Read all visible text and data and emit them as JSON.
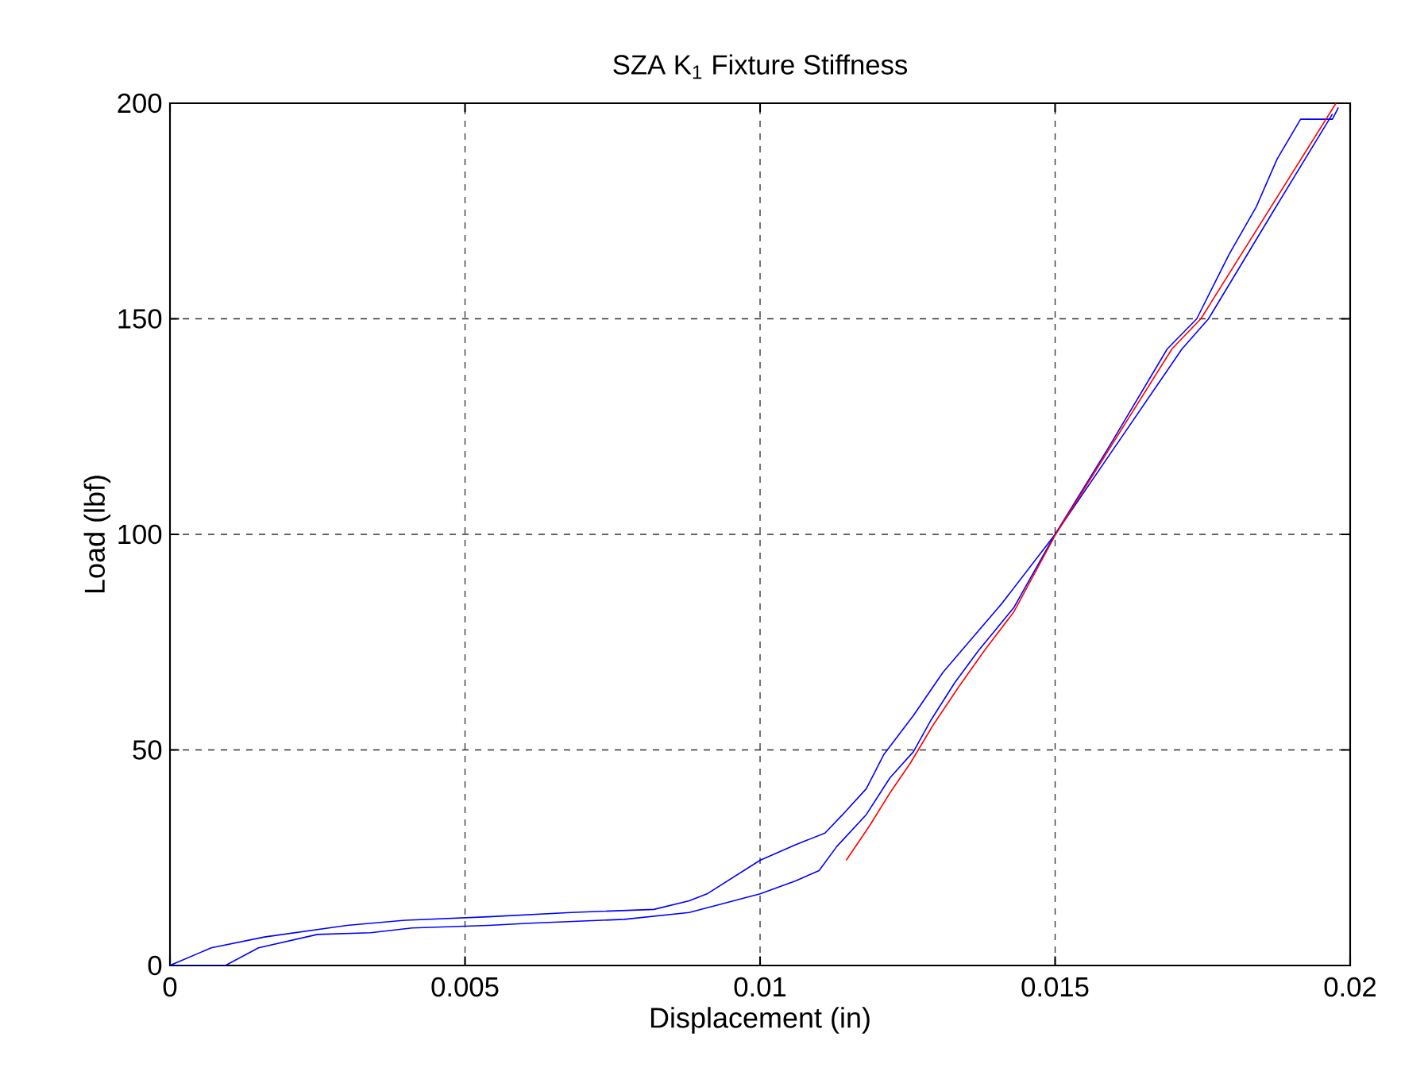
{
  "chart_data": {
    "type": "line",
    "title": "SZA K$_{1}$ Fixture Stiffness",
    "xlabel": "Displacement (in)",
    "ylabel": "Load (lbf)",
    "xlim": [
      0,
      0.02
    ],
    "ylim": [
      0,
      200
    ],
    "xticks": [
      0,
      0.005,
      0.01,
      0.015,
      0.02
    ],
    "yticks": [
      0,
      50,
      100,
      150,
      200
    ],
    "grid": true,
    "series": [
      {
        "color": "#0000ff",
        "x": [
          0,
          0.0007,
          0.0016,
          0.003,
          0.004,
          0.0054,
          0.0068,
          0.0082,
          0.0088,
          0.0091,
          0.01,
          0.0106,
          0.0111,
          0.0114,
          0.0118,
          0.0121,
          0.0126,
          0.0131,
          0.0136,
          0.0141,
          0.015,
          0.0159,
          0.0169,
          0.0174,
          0.01795,
          0.01841,
          0.01876,
          0.01916,
          0.0197,
          0.0198
        ],
        "values": [
          0,
          4.1,
          6.6,
          9.3,
          10.5,
          11.3,
          12.3,
          13,
          15,
          16.6,
          24.4,
          28,
          30.7,
          35,
          41,
          49,
          58,
          68,
          76,
          84,
          100,
          120,
          143,
          150,
          165,
          176,
          187,
          196.3,
          196.3,
          199
        ]
      },
      {
        "color": "#0000ff",
        "x": [
          0,
          0.00094,
          0.0015,
          0.0025,
          0.0034,
          0.0041,
          0.0054,
          0.0061,
          0.0077,
          0.0088,
          0.01,
          0.0106,
          0.011,
          0.0113,
          0.0118,
          0.0122,
          0.0126,
          0.0129,
          0.0133,
          0.0137,
          0.0143,
          0.015,
          0.016,
          0.01715,
          0.0176,
          0.0187,
          0.0197
        ],
        "values": [
          0,
          0,
          4.1,
          7.2,
          7.6,
          8.7,
          9.3,
          9.8,
          10.7,
          12.3,
          16.6,
          19.6,
          22,
          27.6,
          35,
          43.5,
          49.6,
          57,
          65.6,
          73,
          83,
          100,
          120,
          143,
          150,
          175,
          197.5
        ]
      },
      {
        "color": "#ff0000",
        "x": [
          0.01146,
          0.01186,
          0.0122,
          0.01255,
          0.01293,
          0.01336,
          0.0138,
          0.0143,
          0.01501,
          0.01698,
          0.01747,
          0.01976
        ],
        "values": [
          24.4,
          32.5,
          40,
          47,
          55.7,
          64.5,
          73,
          82,
          100,
          143,
          150,
          200
        ]
      }
    ]
  }
}
